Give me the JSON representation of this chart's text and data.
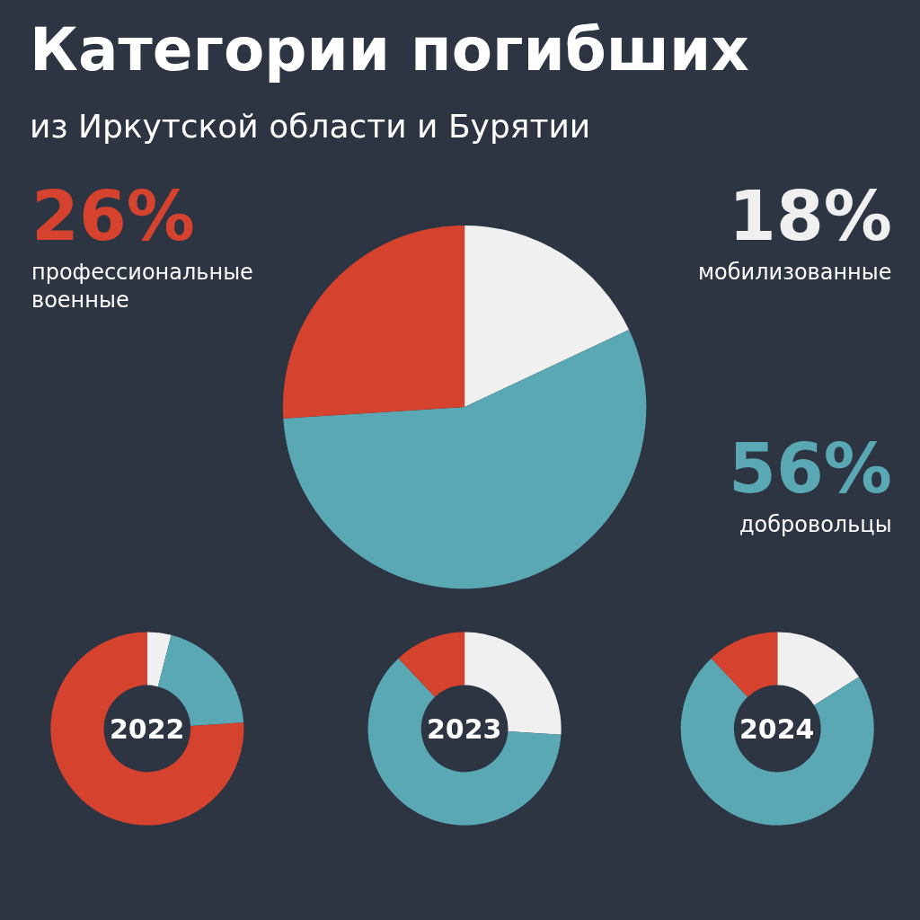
{
  "chart_data": [
    {
      "type": "pie",
      "title": "Категории погибших",
      "subtitle": "из Иркутской области и Бурятии",
      "categories": [
        "мобилизованные",
        "добровольцы",
        "профессиональные\nвоенные"
      ],
      "values": [
        18,
        56,
        26
      ],
      "value_labels": [
        "18%",
        "56%",
        "26%"
      ],
      "colors": [
        "#f0f0f0",
        "#5ba8b5",
        "#d5432f"
      ]
    },
    {
      "type": "donut",
      "title": "2022",
      "categories": [
        null,
        null,
        null
      ],
      "values": [
        4,
        20,
        76
      ],
      "colors": [
        "#f0f0f0",
        "#5ba8b5",
        "#d5432f"
      ]
    },
    {
      "type": "donut",
      "title": "2023",
      "categories": [
        null,
        null,
        null
      ],
      "values": [
        26,
        62,
        12
      ],
      "colors": [
        "#f0f0f0",
        "#5ba8b5",
        "#d5432f"
      ]
    },
    {
      "type": "donut",
      "title": "2024",
      "categories": [
        null,
        null,
        null
      ],
      "values": [
        16,
        72,
        12
      ],
      "colors": [
        "#f0f0f0",
        "#5ba8b5",
        "#d5432f"
      ]
    }
  ]
}
